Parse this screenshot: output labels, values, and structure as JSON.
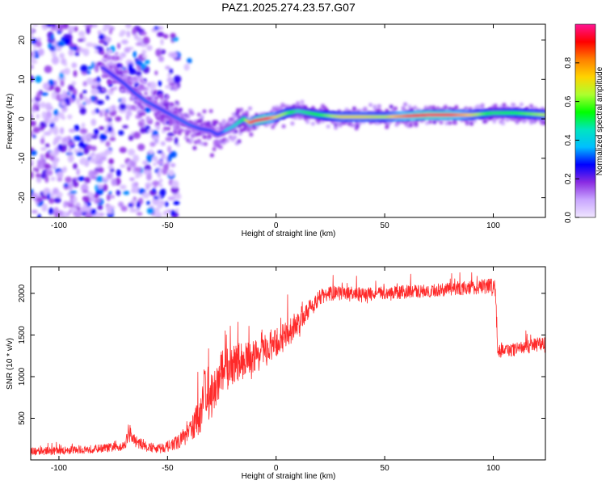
{
  "title": "PAZ1.2025.274.23.57.G07",
  "chart_data": [
    {
      "type": "heatmap",
      "title": "PAZ1.2025.274.23.57.G07",
      "xlabel": "Height of straight line (km)",
      "ylabel": "Frequency (Hz)",
      "xlim": [
        -113,
        124
      ],
      "ylim": [
        -25,
        24
      ],
      "xticks": [
        -100,
        -50,
        0,
        50,
        100
      ],
      "xtick_labels": [
        "-100",
        "-50",
        "0",
        "50",
        "100"
      ],
      "yticks": [
        -20,
        -10,
        0,
        10,
        20
      ],
      "ytick_labels": [
        "-20",
        "-10",
        "0",
        "10",
        "20"
      ],
      "ridge_x": [
        -80,
        -75,
        -70,
        -65,
        -60,
        -55,
        -50,
        -45,
        -40,
        -35,
        -30,
        -27,
        -25,
        -22,
        -20,
        -15,
        -12,
        -10,
        -5,
        0,
        5,
        10,
        20,
        30,
        40,
        50,
        60,
        70,
        80,
        90,
        100,
        110,
        124
      ],
      "ridge_y": [
        13,
        11,
        9,
        6.5,
        4.5,
        3,
        1.5,
        0,
        -1.5,
        -2.5,
        -3,
        -4,
        -3.5,
        -2.5,
        -2,
        0,
        -1,
        -0.5,
        0,
        0.5,
        1.5,
        2,
        1,
        0.5,
        0.5,
        0.5,
        0.7,
        1,
        1,
        1,
        1.5,
        1.5,
        1
      ],
      "ridge_amp": [
        0.25,
        0.28,
        0.3,
        0.3,
        0.32,
        0.3,
        0.3,
        0.32,
        0.32,
        0.3,
        0.3,
        0.3,
        0.3,
        0.4,
        0.4,
        0.5,
        0.85,
        0.9,
        0.95,
        0.7,
        0.6,
        0.45,
        0.55,
        0.7,
        0.7,
        0.65,
        0.85,
        0.95,
        0.9,
        0.7,
        0.5,
        0.55,
        0.65
      ],
      "colorbar": {
        "label": "Normalized spectral amplitude",
        "ticks": [
          0.0,
          0.2,
          0.4,
          0.6,
          0.8
        ],
        "tick_labels": [
          "0.0",
          "0.2",
          "0.4",
          "0.6",
          "0.8"
        ],
        "range": [
          0,
          1
        ],
        "colors": [
          "#f0e6ff",
          "#c9a6ff",
          "#8a2be2",
          "#0000ff",
          "#00bfff",
          "#00e5c0",
          "#00ff00",
          "#adff2f",
          "#ffd400",
          "#ff7f00",
          "#ff0000",
          "#ff1493"
        ]
      }
    },
    {
      "type": "line",
      "title": "",
      "xlabel": "Height of straight line (km)",
      "ylabel": "SNR (10 * v/v)",
      "xlim": [
        -113,
        124
      ],
      "ylim": [
        0,
        2320
      ],
      "xticks": [
        -100,
        -50,
        0,
        50,
        100
      ],
      "xtick_labels": [
        "-100",
        "-50",
        "0",
        "50",
        "100"
      ],
      "yticks": [
        500,
        1000,
        1500,
        2000
      ],
      "ytick_labels": [
        "500",
        "1000",
        "1500",
        "2000"
      ],
      "color": "#ff2a2a",
      "series": [
        {
          "name": "SNR",
          "x": [
            -113,
            -100,
            -90,
            -80,
            -75,
            -70,
            -68,
            -65,
            -60,
            -55,
            -50,
            -45,
            -40,
            -35,
            -33,
            -30,
            -28,
            -25,
            -20,
            -15,
            -10,
            -5,
            0,
            5,
            10,
            15,
            20,
            25,
            30,
            40,
            50,
            60,
            70,
            80,
            90,
            95,
            100,
            101,
            102,
            105,
            110,
            115,
            120,
            124
          ],
          "y": [
            100,
            110,
            120,
            140,
            150,
            170,
            300,
            230,
            160,
            140,
            160,
            220,
            320,
            550,
            900,
            750,
            850,
            1050,
            1150,
            1200,
            1250,
            1300,
            1400,
            1500,
            1650,
            1800,
            1950,
            2000,
            2000,
            1980,
            2000,
            2020,
            2030,
            2050,
            2070,
            2080,
            2100,
            2050,
            1300,
            1320,
            1320,
            1350,
            1380,
            1400
          ],
          "noise": [
            60,
            60,
            60,
            60,
            70,
            70,
            120,
            90,
            70,
            70,
            80,
            100,
            150,
            300,
            400,
            350,
            350,
            350,
            300,
            280,
            250,
            250,
            220,
            220,
            200,
            150,
            120,
            110,
            110,
            110,
            100,
            100,
            100,
            100,
            110,
            110,
            120,
            120,
            100,
            100,
            100,
            100,
            100,
            100
          ]
        }
      ]
    }
  ]
}
